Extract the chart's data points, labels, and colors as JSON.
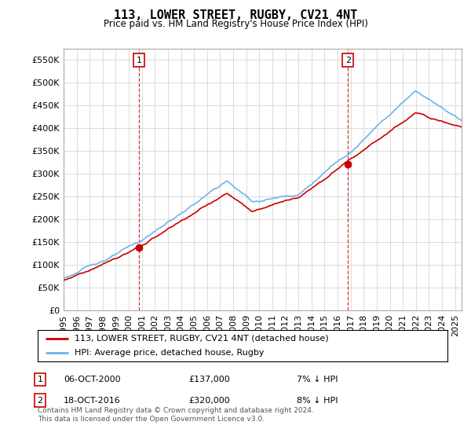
{
  "title": "113, LOWER STREET, RUGBY, CV21 4NT",
  "subtitle": "Price paid vs. HM Land Registry's House Price Index (HPI)",
  "legend_entry1": "113, LOWER STREET, RUGBY, CV21 4NT (detached house)",
  "legend_entry2": "HPI: Average price, detached house, Rugby",
  "annotation1_date": "06-OCT-2000",
  "annotation1_price": 137000,
  "annotation1_hpi": "7% ↓ HPI",
  "annotation2_date": "18-OCT-2016",
  "annotation2_price": 320000,
  "annotation2_hpi": "8% ↓ HPI",
  "footer": "Contains HM Land Registry data © Crown copyright and database right 2024.\nThis data is licensed under the Open Government Licence v3.0.",
  "sale1_year": 2000.77,
  "sale2_year": 2016.8,
  "sale1_value": 137000,
  "sale2_value": 320000,
  "hpi_color": "#6eb4e8",
  "price_color": "#cc0000",
  "vline_color": "#cc0000",
  "dot_color": "#cc0000",
  "background_color": "#ffffff",
  "grid_color": "#dddddd",
  "ylim": [
    0,
    575000
  ],
  "yticks": [
    0,
    50000,
    100000,
    150000,
    200000,
    250000,
    300000,
    350000,
    400000,
    450000,
    500000,
    550000
  ],
  "xstart": 1995.0,
  "xend": 2025.5
}
